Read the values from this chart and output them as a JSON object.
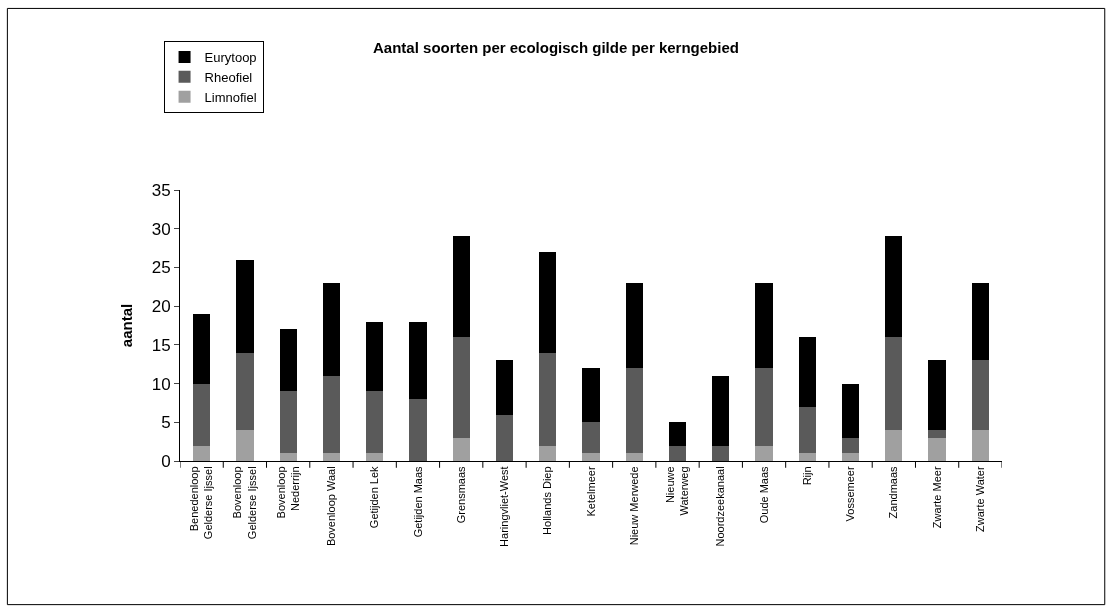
{
  "chart_data": {
    "type": "bar",
    "title": "Aantal soorten per ecologisch gilde per kerngebied",
    "ylabel": "aantal",
    "categories": [
      "Benedenloop Gelderse Ijssel",
      "Bovenloop Gelderse Ijssel",
      "Bovenloop Nederrijn",
      "Bovenloop Waal",
      "Getijden Lek",
      "Getijden Maas",
      "Grensmaas",
      "Haringvliet-West",
      "Hollands Diep",
      "Ketelmeer",
      "Nieuw Merwede",
      "Nieuwe Waterweg",
      "Noordzeekanaal",
      "Oude Maas",
      "Rijn",
      "Vossemeer",
      "Zandmaas",
      "Zwarte Meer",
      "Zwarte Water"
    ],
    "series": [
      {
        "name": "Limnofiel",
        "color": "#a0a0a0",
        "values": [
          2,
          4,
          1,
          1,
          1,
          0,
          3,
          0,
          2,
          1,
          1,
          0,
          0,
          2,
          1,
          1,
          4,
          3,
          4
        ]
      },
      {
        "name": "Rheofiel",
        "color": "#5a5a5a",
        "values": [
          8,
          10,
          8,
          10,
          8,
          8,
          13,
          6,
          12,
          4,
          11,
          2,
          2,
          10,
          6,
          2,
          12,
          1,
          9
        ]
      },
      {
        "name": "Eurytoop",
        "color": "#000000",
        "values": [
          9,
          12,
          8,
          12,
          9,
          10,
          13,
          7,
          13,
          7,
          11,
          3,
          9,
          11,
          9,
          7,
          13,
          9,
          10
        ]
      }
    ],
    "stacked": true,
    "ylim": [
      0,
      35
    ],
    "yticks": [
      0,
      5,
      10,
      15,
      20,
      25,
      30,
      35
    ],
    "legend": "top left"
  }
}
